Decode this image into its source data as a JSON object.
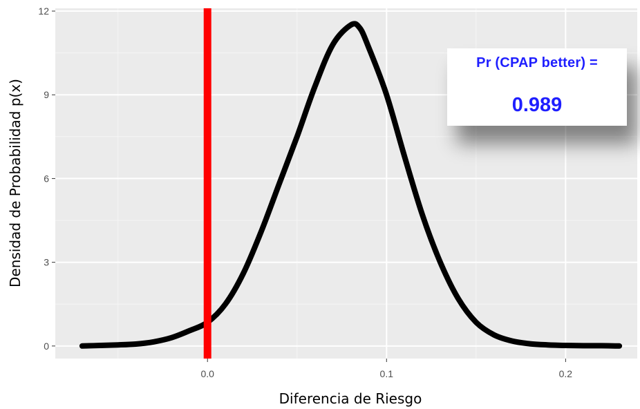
{
  "chart_data": {
    "type": "line",
    "xlabel": "Diferencia de Riesgo",
    "ylabel": "Densidad de Probabilidad p(x)",
    "xlim": [
      -0.085,
      0.24
    ],
    "ylim": [
      -0.45,
      12.1
    ],
    "x_ticks": [
      0.0,
      0.1,
      0.2
    ],
    "x_tick_labels": [
      "0.0",
      "0.1",
      "0.2"
    ],
    "y_ticks": [
      0,
      3,
      6,
      9,
      12
    ],
    "y_tick_labels": [
      "0",
      "3",
      "6",
      "9",
      "12"
    ],
    "grid": true,
    "reference_line": {
      "x": 0.0,
      "color": "#ff0000"
    },
    "series": [
      {
        "color": "#000000",
        "x": [
          -0.07,
          -0.06,
          -0.05,
          -0.04,
          -0.03,
          -0.02,
          -0.01,
          0.0,
          0.01,
          0.02,
          0.03,
          0.04,
          0.05,
          0.06,
          0.07,
          0.08,
          0.085,
          0.09,
          0.1,
          0.11,
          0.12,
          0.13,
          0.14,
          0.15,
          0.16,
          0.17,
          0.18,
          0.19,
          0.2,
          0.21,
          0.22,
          0.23
        ],
        "y": [
          0.0,
          0.02,
          0.04,
          0.07,
          0.15,
          0.3,
          0.55,
          0.85,
          1.5,
          2.6,
          4.1,
          5.8,
          7.5,
          9.3,
          10.8,
          11.5,
          11.4,
          10.7,
          9.0,
          6.8,
          4.7,
          3.0,
          1.7,
          0.85,
          0.4,
          0.18,
          0.08,
          0.04,
          0.02,
          0.01,
          0.01,
          0.0
        ]
      }
    ]
  },
  "annotation": {
    "label": "Pr (CPAP better) =",
    "value": "0.989",
    "color": "#1f1fff"
  }
}
